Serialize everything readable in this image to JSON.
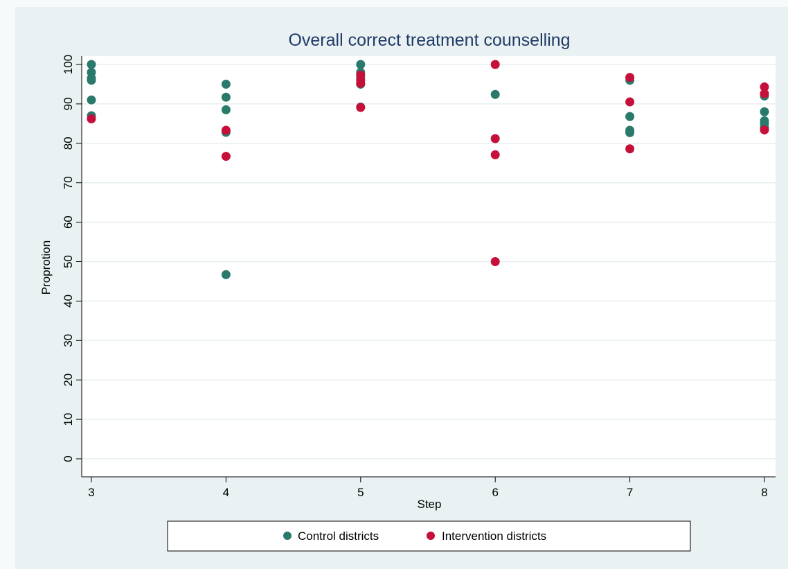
{
  "chart_data": {
    "type": "scatter",
    "title": "Overall correct treatment counselling",
    "xlabel": "Step",
    "ylabel": "Proprotion",
    "xlim": [
      3,
      8
    ],
    "ylim": [
      0,
      100
    ],
    "xticks": [
      3,
      4,
      5,
      6,
      7,
      8
    ],
    "yticks": [
      0,
      10,
      20,
      30,
      40,
      50,
      60,
      70,
      80,
      90,
      100
    ],
    "grid": true,
    "legend_position": "bottom",
    "series": [
      {
        "name": "Control districts",
        "color": "#2a7a6c",
        "points": [
          [
            3,
            100
          ],
          [
            3,
            98
          ],
          [
            3,
            96.5
          ],
          [
            3,
            96
          ],
          [
            3,
            91
          ],
          [
            3,
            87
          ],
          [
            4,
            95
          ],
          [
            4,
            91.7
          ],
          [
            4,
            88.5
          ],
          [
            4,
            82.8
          ],
          [
            4,
            46.7
          ],
          [
            5,
            100
          ],
          [
            5,
            98
          ],
          [
            5,
            96.5
          ],
          [
            5,
            95
          ],
          [
            5,
            89.2
          ],
          [
            6,
            92.4
          ],
          [
            7,
            96
          ],
          [
            7,
            86.8
          ],
          [
            7,
            83.3
          ],
          [
            7,
            82.7
          ],
          [
            8,
            92
          ],
          [
            8,
            88
          ],
          [
            8,
            85.7
          ],
          [
            8,
            85
          ],
          [
            8,
            84
          ]
        ]
      },
      {
        "name": "Intervention districts",
        "color": "#c5103a",
        "points": [
          [
            3,
            86.2
          ],
          [
            4,
            83.3
          ],
          [
            4,
            76.7
          ],
          [
            5,
            97.3
          ],
          [
            5,
            96
          ],
          [
            5,
            95.2
          ],
          [
            5,
            89.1
          ],
          [
            6,
            100
          ],
          [
            6,
            81.2
          ],
          [
            6,
            77.1
          ],
          [
            6,
            50
          ],
          [
            7,
            96.7
          ],
          [
            7,
            90.5
          ],
          [
            7,
            78.6
          ],
          [
            8,
            94.3
          ],
          [
            8,
            92.6
          ],
          [
            8,
            83.4
          ]
        ]
      }
    ]
  }
}
